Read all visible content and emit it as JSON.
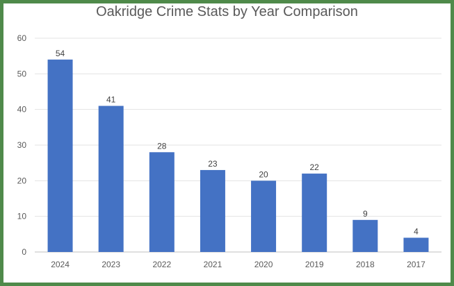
{
  "chart_data": {
    "type": "bar",
    "title": "Oakridge Crime Stats by Year Comparison",
    "categories": [
      "2024",
      "2023",
      "2022",
      "2021",
      "2020",
      "2019",
      "2018",
      "2017"
    ],
    "values": [
      54,
      41,
      28,
      23,
      20,
      22,
      9,
      4
    ],
    "xlabel": "",
    "ylabel": "",
    "ylim": [
      0,
      60
    ],
    "yticks": [
      0,
      10,
      20,
      30,
      40,
      50,
      60
    ],
    "grid": true,
    "legend": "none",
    "bar_color": "#4472c4",
    "frame_color": "#4f8a4a"
  }
}
